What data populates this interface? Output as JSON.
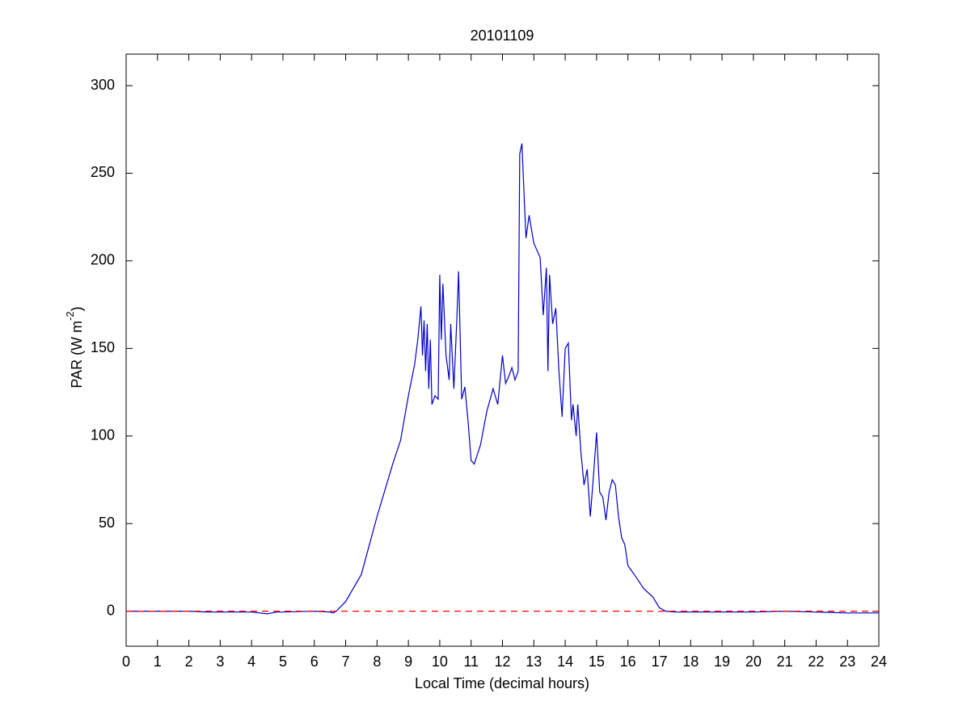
{
  "chart_data": {
    "type": "line",
    "title": "20101109",
    "x_label": "Local Time (decimal hours)",
    "y_label": [
      "PAR (W m",
      "-2",
      ")"
    ],
    "xlim": [
      0,
      24
    ],
    "xticks": [
      0,
      1,
      2,
      3,
      4,
      5,
      6,
      7,
      8,
      9,
      10,
      11,
      12,
      13,
      14,
      15,
      16,
      17,
      18,
      19,
      20,
      21,
      22,
      23,
      24
    ],
    "ylim": [
      -20,
      318
    ],
    "yticks": [
      0,
      50,
      100,
      150,
      200,
      250,
      300
    ],
    "box": true,
    "series": [
      {
        "color": "#0000cc",
        "dash": false,
        "x": [
          0,
          1,
          2,
          2.6,
          3,
          4,
          4.5,
          4.8,
          5,
          6,
          6.5,
          6.6,
          6.7,
          7,
          7.5,
          8,
          8.5,
          8.75,
          9,
          9.2,
          9.3,
          9.4,
          9.45,
          9.5,
          9.55,
          9.6,
          9.65,
          9.7,
          9.75,
          9.85,
          9.95,
          10,
          10.05,
          10.1,
          10.2,
          10.3,
          10.35,
          10.45,
          10.55,
          10.6,
          10.7,
          10.8,
          10.9,
          11,
          11.1,
          11.3,
          11.5,
          11.7,
          11.85,
          12,
          12.1,
          12.2,
          12.3,
          12.4,
          12.5,
          12.55,
          12.62,
          12.7,
          12.75,
          12.85,
          13,
          13.2,
          13.3,
          13.4,
          13.45,
          13.5,
          13.6,
          13.7,
          13.8,
          13.9,
          14,
          14.1,
          14.2,
          14.25,
          14.35,
          14.4,
          14.5,
          14.6,
          14.7,
          14.8,
          14.9,
          15,
          15.1,
          15.2,
          15.3,
          15.4,
          15.5,
          15.6,
          15.7,
          15.8,
          15.9,
          16,
          16.2,
          16.5,
          16.8,
          17,
          17.2,
          17.5,
          18,
          19,
          20,
          21,
          22,
          23,
          23.5,
          24
        ],
        "values": [
          0,
          0,
          0,
          -0.5,
          -0.5,
          -0.5,
          -1.5,
          -0.5,
          -0.5,
          0,
          -0.5,
          -1,
          0,
          5.5,
          21,
          54,
          84,
          97.5,
          123,
          141,
          155,
          174,
          146,
          166,
          137,
          164,
          127,
          155,
          118,
          123,
          121,
          192,
          155,
          187,
          146,
          132,
          164,
          127,
          169,
          194,
          121,
          128,
          109,
          86,
          84,
          95,
          114,
          127,
          118,
          146,
          130,
          134,
          139,
          132,
          137,
          261,
          267,
          233,
          213,
          226,
          210,
          202,
          169,
          196,
          137,
          192,
          164,
          173,
          137,
          111,
          150,
          153,
          109,
          118,
          100,
          118,
          91,
          72,
          81,
          54,
          77,
          102,
          68,
          65,
          52,
          68,
          75,
          72,
          54,
          42,
          38,
          26,
          21,
          13,
          8,
          2,
          0,
          -0.5,
          -0.5,
          -0.5,
          -0.5,
          0,
          -0.5,
          -1,
          -1,
          -1
        ]
      },
      {
        "color": "#ff0000",
        "dash": true,
        "x": [
          0,
          24
        ],
        "values": [
          0,
          0
        ]
      }
    ]
  }
}
